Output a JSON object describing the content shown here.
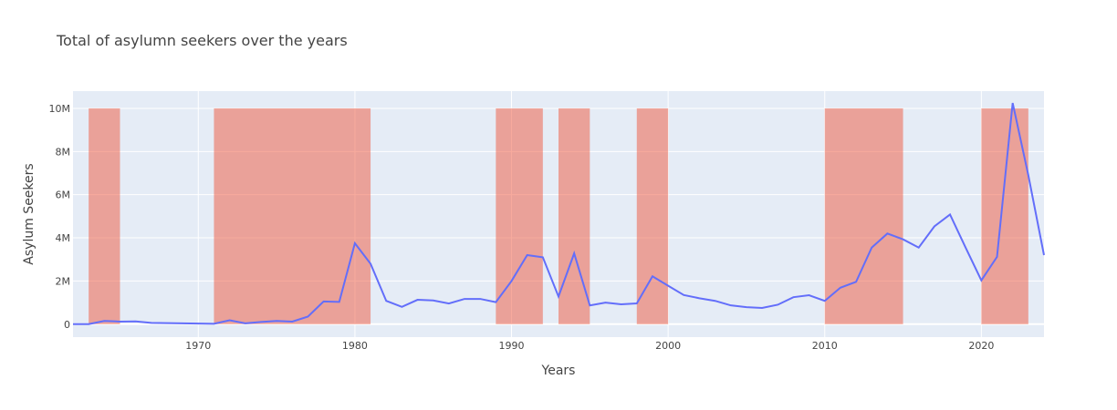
{
  "chart_data": {
    "type": "line",
    "title": "Total of asylumn seekers over the years",
    "xlabel": "Years",
    "ylabel": "Asylum Seekers",
    "xlim": [
      1962,
      2024
    ],
    "ylim": [
      -600000,
      10800000
    ],
    "grid": true,
    "x_ticks": [
      1970,
      1980,
      1990,
      2000,
      2010,
      2020
    ],
    "x_tick_labels": [
      "1970",
      "1980",
      "1990",
      "2000",
      "2010",
      "2020"
    ],
    "y_ticks": [
      0,
      2000000,
      4000000,
      6000000,
      8000000,
      10000000
    ],
    "y_tick_labels": [
      "0",
      "2M",
      "4M",
      "6M",
      "8M",
      "10M"
    ],
    "colors": {
      "line": "#636efa",
      "band": "#ef553b",
      "plot_bg": "#e5ecf6"
    },
    "bands": [
      {
        "x0": 1963,
        "x1": 1965,
        "y": 10000000
      },
      {
        "x0": 1971,
        "x1": 1981,
        "y": 10000000
      },
      {
        "x0": 1989,
        "x1": 1992,
        "y": 10000000
      },
      {
        "x0": 1993,
        "x1": 1995,
        "y": 10000000
      },
      {
        "x0": 1998,
        "x1": 2000,
        "y": 10000000
      },
      {
        "x0": 2010,
        "x1": 2015,
        "y": 10000000
      },
      {
        "x0": 2020,
        "x1": 2023,
        "y": 10000000
      }
    ],
    "x": [
      1962,
      1963,
      1964,
      1965,
      1966,
      1967,
      1968,
      1969,
      1970,
      1971,
      1972,
      1973,
      1974,
      1975,
      1976,
      1977,
      1978,
      1979,
      1980,
      1981,
      1982,
      1983,
      1984,
      1985,
      1986,
      1987,
      1988,
      1989,
      1990,
      1991,
      1992,
      1993,
      1994,
      1995,
      1996,
      1997,
      1998,
      1999,
      2000,
      2001,
      2002,
      2003,
      2004,
      2005,
      2006,
      2007,
      2008,
      2009,
      2010,
      2011,
      2012,
      2013,
      2014,
      2015,
      2016,
      2017,
      2018,
      2019,
      2020,
      2021,
      2022,
      2023,
      2024
    ],
    "values": [
      0,
      0,
      150000,
      120000,
      130000,
      60000,
      50000,
      40000,
      30000,
      20000,
      180000,
      40000,
      100000,
      150000,
      120000,
      350000,
      1050000,
      1030000,
      3750000,
      2800000,
      1080000,
      800000,
      1130000,
      1100000,
      960000,
      1170000,
      1170000,
      1020000,
      2000000,
      3200000,
      3100000,
      1280000,
      3280000,
      870000,
      1000000,
      920000,
      960000,
      2220000,
      1780000,
      1350000,
      1200000,
      1080000,
      870000,
      790000,
      750000,
      900000,
      1250000,
      1340000,
      1080000,
      1690000,
      1960000,
      3550000,
      4200000,
      3930000,
      3550000,
      4530000,
      5080000,
      3540000,
      2030000,
      3120000,
      10250000,
      6900000,
      3200000
    ]
  }
}
